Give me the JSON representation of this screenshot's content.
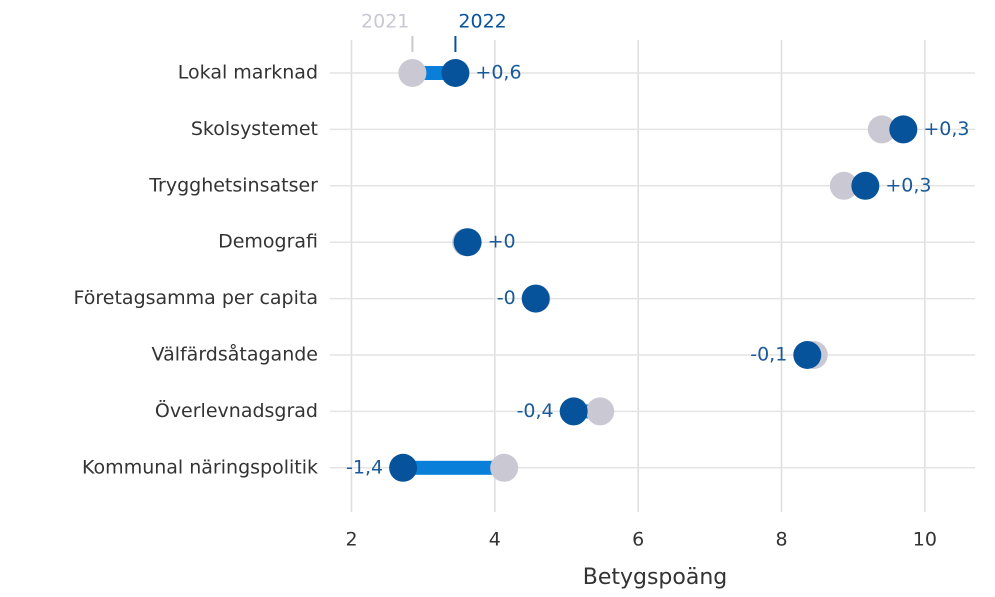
{
  "chart_data": {
    "type": "dumbbell",
    "xlabel": "Betygspoäng",
    "categories": [
      "Lokal marknad",
      "Skolsystemet",
      "Trygghetsinsatser",
      "Demografi",
      "Företagsamma per capita",
      "Välfärdsåtagande",
      "Överlevnadsgrad",
      "Kommunal näringspolitik"
    ],
    "series": [
      {
        "name": "2021",
        "color": "#c9c8d3",
        "values": [
          2.85,
          9.4,
          8.87,
          3.6,
          4.58,
          8.45,
          5.47,
          4.13
        ]
      },
      {
        "name": "2022",
        "color": "#06539c",
        "values": [
          3.45,
          9.7,
          9.17,
          3.62,
          4.57,
          8.36,
          5.1,
          2.72
        ]
      }
    ],
    "change": {
      "values": [
        0.6,
        0.3,
        0.3,
        0,
        0,
        -0.1,
        -0.4,
        -1.4
      ],
      "value_labels": [
        "+0,6",
        "+0,3",
        "+0,3",
        "+0",
        "-0",
        "-0,1",
        "-0,4",
        "-1,4"
      ]
    },
    "bar_color": "#0a7fd9",
    "label_color": "#1a5a9a",
    "xlim": [
      1.7,
      10.7
    ],
    "xticks": [
      2,
      4,
      6,
      8,
      10
    ],
    "grid": true
  }
}
